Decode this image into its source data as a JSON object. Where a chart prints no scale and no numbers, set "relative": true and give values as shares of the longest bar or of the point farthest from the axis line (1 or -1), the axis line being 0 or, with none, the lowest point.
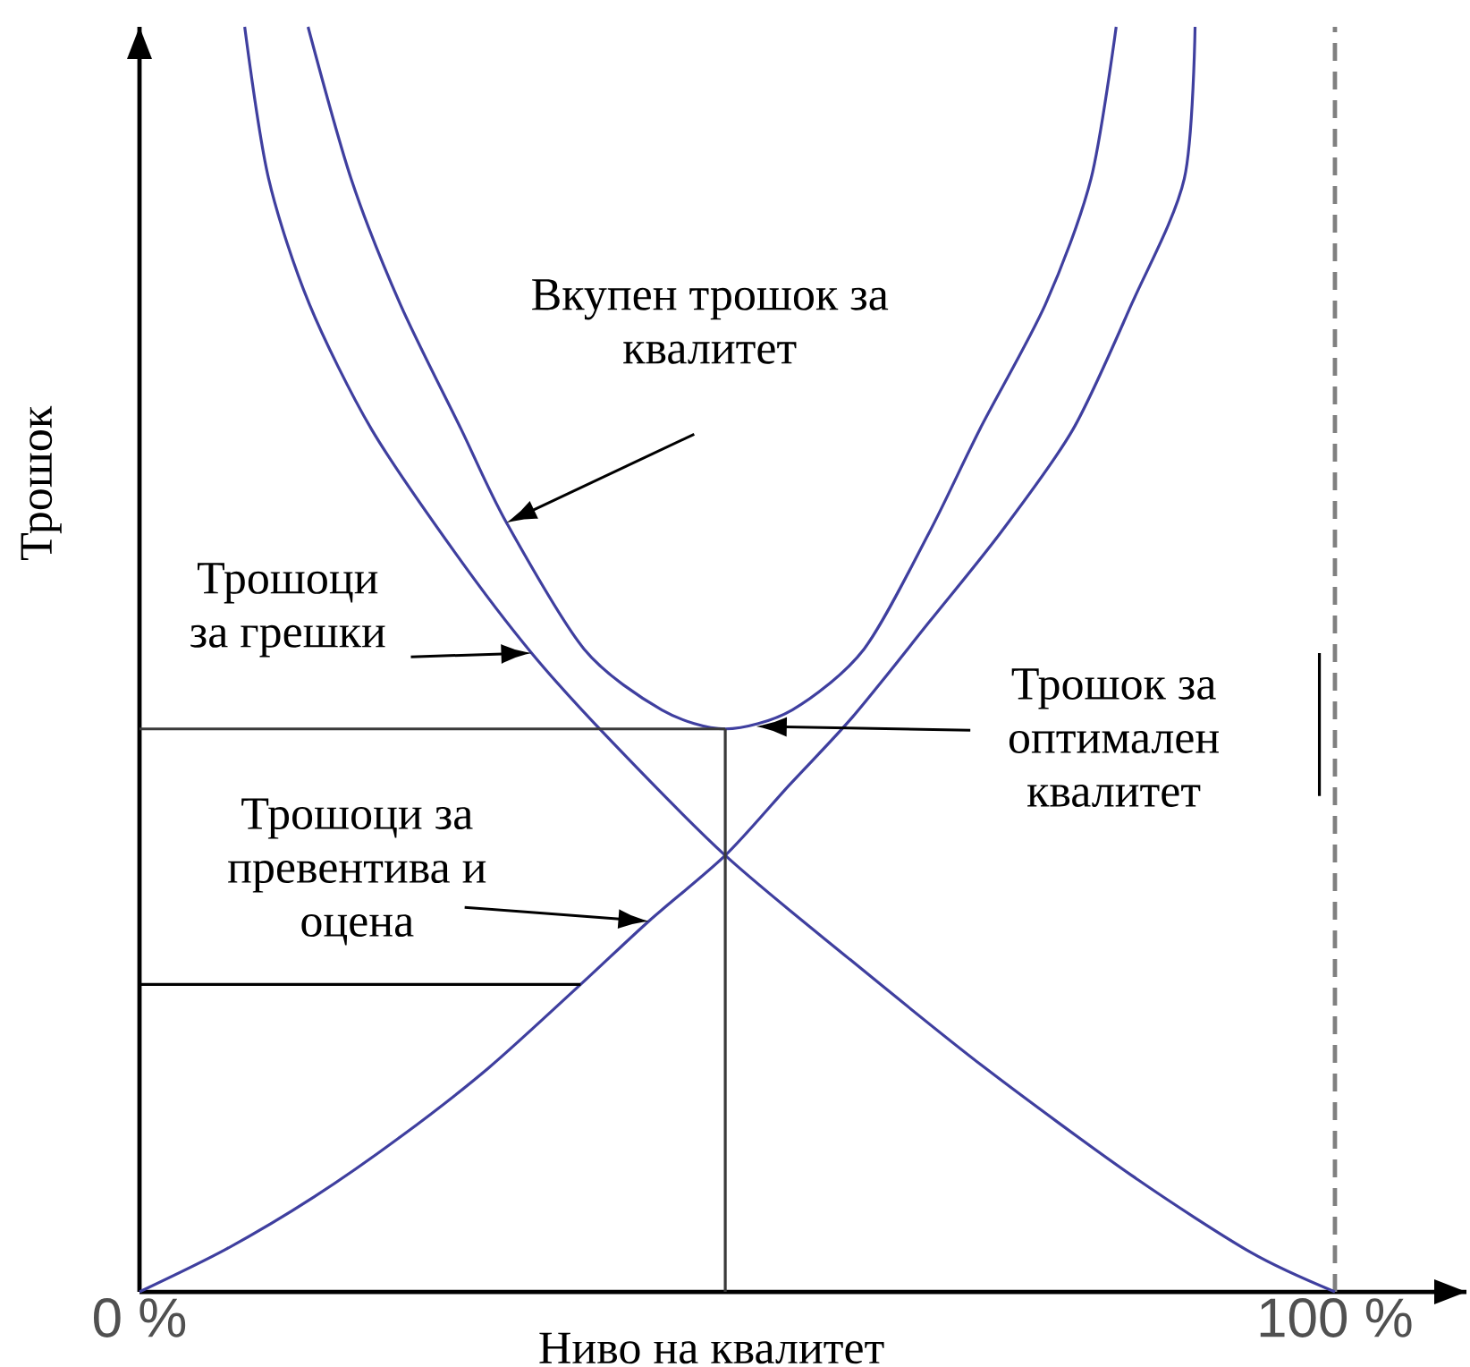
{
  "chart_data": {
    "type": "line",
    "xlabel": "Ниво на квалитет",
    "ylabel": "Трошок",
    "relative": true,
    "xlim": [
      0,
      111
    ],
    "xticks": [
      {
        "value": 0,
        "label": "0 %"
      },
      {
        "value": 100,
        "label": "100 %"
      }
    ],
    "series": [
      {
        "name": "Трошоци за грешки",
        "color": "#3f3f9f",
        "x": [
          8.8,
          10.8,
          14.2,
          19.4,
          26.5,
          32.8,
          39.2,
          49.0,
          59.4,
          70.6,
          83.0,
          93.0,
          100
        ],
        "values": [
          1.0,
          0.88,
          0.781,
          0.682,
          0.583,
          0.505,
          0.438,
          0.345,
          0.263,
          0.178,
          0.092,
          0.031,
          0
        ]
      },
      {
        "name": "Трошоци за превентива и оцена",
        "color": "#3f3f9f",
        "x": [
          0,
          7.3,
          14.6,
          21.9,
          29.2,
          36.9,
          42.6,
          49.0,
          54.3,
          59.7,
          66.1,
          72.1,
          78.1,
          83.0,
          87.4,
          88.3
        ],
        "values": [
          0,
          0.034,
          0.075,
          0.123,
          0.177,
          0.243,
          0.293,
          0.345,
          0.4,
          0.455,
          0.53,
          0.601,
          0.682,
          0.781,
          0.88,
          1.0
        ]
      },
      {
        "name": "Вкупен трошок за квалитет",
        "color": "#3f3f9f",
        "x": [
          14.1,
          17.7,
          21.8,
          26.9,
          30.7,
          37.2,
          43.7,
          49.0,
          54.6,
          60.6,
          66.1,
          70.3,
          75.8,
          79.6,
          81.7
        ],
        "values": [
          1.0,
          0.88,
          0.781,
          0.682,
          0.608,
          0.508,
          0.46,
          0.445,
          0.46,
          0.508,
          0.601,
          0.682,
          0.781,
          0.88,
          1.0
        ]
      },
      {
        "color": "#3a3a3a",
        "x": [
          0,
          49.0
        ],
        "values": [
          0.445,
          0.445
        ]
      },
      {
        "color": "#3a3a3a",
        "x": [
          49.0,
          49.0
        ],
        "values": [
          0,
          0.445
        ]
      },
      {
        "color": "#000000",
        "x": [
          0,
          36.9
        ],
        "values": [
          0.243,
          0.243
        ]
      },
      {
        "color": "#000000",
        "x": [
          98.7,
          98.7
        ],
        "values": [
          0.392,
          0.505
        ]
      }
    ],
    "ref_lines": [
      {
        "axis": "x",
        "value": 100,
        "color": "#808080",
        "line_style": "dashed"
      }
    ],
    "annotations": [
      "Трошок за оптимален квалитет"
    ]
  }
}
